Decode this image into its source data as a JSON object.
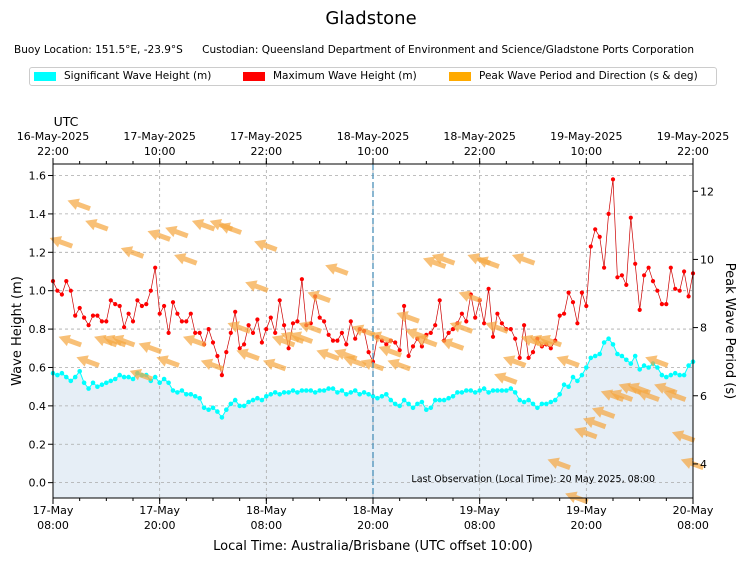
{
  "title": "Gladstone",
  "subtitle": {
    "buoy_location": "Buoy Location: 151.5°E, -23.9°S",
    "custodian": "Custodian: Queensland Department of Environment and Science/Gladstone Ports Corporation"
  },
  "legend": {
    "items": [
      {
        "label": "Significant Wave Height (m)",
        "color": "#00ffff"
      },
      {
        "label": "Maximum Wave Height (m)",
        "color": "#ff0000"
      },
      {
        "label": "Peak Wave Period and Direction (s & deg)",
        "color": "#ffaa00"
      }
    ]
  },
  "colors": {
    "hsig": "#00ffff",
    "hmax": "#ff0000",
    "hmax_line": "#cc0000",
    "arrow": "#f5a742",
    "fill": "#e6eef6",
    "grid": "#aaaaaa",
    "now_line": "#4a90b8"
  },
  "chart_data": {
    "type": "line",
    "title": "Gladstone",
    "xlabel": "Local Time: Australia/Brisbane (UTC offset 10:00)",
    "ylabel": "Wave Height (m)",
    "y2label": "Peak Wave Period (s)",
    "top_axis_label": "UTC",
    "x_unit": "hours since 17-May 08:00 local",
    "xlim": [
      0,
      72
    ],
    "ylim": [
      -0.08,
      1.66
    ],
    "y2lim": [
      3.0,
      12.8
    ],
    "yticks": [
      0.0,
      0.2,
      0.4,
      0.6,
      0.8,
      1.0,
      1.2,
      1.4,
      1.6
    ],
    "y2ticks": [
      4,
      6,
      8,
      10,
      12
    ],
    "xticks": [
      {
        "x": 0,
        "line1": "17-May",
        "line2": "08:00"
      },
      {
        "x": 12,
        "line1": "17-May",
        "line2": "20:00"
      },
      {
        "x": 24,
        "line1": "18-May",
        "line2": "08:00"
      },
      {
        "x": 36,
        "line1": "18-May",
        "line2": "20:00"
      },
      {
        "x": 48,
        "line1": "19-May",
        "line2": "08:00"
      },
      {
        "x": 60,
        "line1": "19-May",
        "line2": "20:00"
      },
      {
        "x": 72,
        "line1": "20-May",
        "line2": "08:00"
      }
    ],
    "top_xticks": [
      {
        "x": 0,
        "line1": "16-May-2025",
        "line2": "22:00"
      },
      {
        "x": 12,
        "line1": "17-May-2025",
        "line2": "10:00"
      },
      {
        "x": 24,
        "line1": "17-May-2025",
        "line2": "22:00"
      },
      {
        "x": 36,
        "line1": "18-May-2025",
        "line2": "10:00"
      },
      {
        "x": 48,
        "line1": "18-May-2025",
        "line2": "22:00"
      },
      {
        "x": 60,
        "line1": "19-May-2025",
        "line2": "10:00"
      },
      {
        "x": 72,
        "line1": "19-May-2025",
        "line2": "22:00"
      }
    ],
    "now_marker_x": 36,
    "last_observation": "Last Observation (Local Time): 20 May 2025, 08:00",
    "series": [
      {
        "name": "Significant Wave Height (m)",
        "x": [
          0.0,
          0.5,
          1.0,
          1.5,
          2.0,
          2.5,
          3.0,
          3.5,
          4.0,
          4.5,
          5.0,
          5.5,
          6.0,
          6.5,
          7.0,
          7.5,
          8.0,
          8.5,
          9.0,
          9.5,
          10.0,
          10.5,
          11.0,
          11.5,
          12.0,
          12.5,
          13.0,
          13.5,
          14.0,
          14.5,
          15.0,
          15.5,
          16.0,
          16.5,
          17.0,
          17.5,
          18.0,
          18.5,
          19.0,
          19.5,
          20.0,
          20.5,
          21.0,
          21.5,
          22.0,
          22.5,
          23.0,
          23.5,
          24.0,
          24.5,
          25.0,
          25.5,
          26.0,
          26.5,
          27.0,
          27.5,
          28.0,
          28.5,
          29.0,
          29.5,
          30.0,
          30.5,
          31.0,
          31.5,
          32.0,
          32.5,
          33.0,
          33.5,
          34.0,
          34.5,
          35.0,
          35.5,
          36.0,
          36.5,
          37.0,
          37.5,
          38.0,
          38.5,
          39.0,
          39.5,
          40.0,
          40.5,
          41.0,
          41.5,
          42.0,
          42.5,
          43.0,
          43.5,
          44.0,
          44.5,
          45.0,
          45.5,
          46.0,
          46.5,
          47.0,
          47.5,
          48.0,
          48.5,
          49.0,
          49.5,
          50.0,
          50.5,
          51.0,
          51.5,
          52.0,
          52.5,
          53.0,
          53.5,
          54.0,
          54.5,
          55.0,
          55.5,
          56.0,
          56.5,
          57.0,
          57.5,
          58.0,
          58.5,
          59.0,
          59.5,
          60.0,
          60.5,
          61.0,
          61.5,
          62.0,
          62.5,
          63.0,
          63.5,
          64.0,
          64.5,
          65.0,
          65.5,
          66.0,
          66.5,
          67.0,
          67.5,
          68.0,
          68.5,
          69.0,
          69.5,
          70.0,
          70.5,
          71.0,
          71.5,
          72.0
        ],
        "values": [
          0.57,
          0.56,
          0.57,
          0.55,
          0.53,
          0.55,
          0.58,
          0.52,
          0.49,
          0.52,
          0.5,
          0.51,
          0.52,
          0.53,
          0.54,
          0.56,
          0.55,
          0.55,
          0.54,
          0.57,
          0.56,
          0.56,
          0.53,
          0.55,
          0.52,
          0.54,
          0.52,
          0.48,
          0.47,
          0.48,
          0.46,
          0.46,
          0.45,
          0.44,
          0.39,
          0.38,
          0.39,
          0.37,
          0.34,
          0.38,
          0.41,
          0.43,
          0.4,
          0.4,
          0.42,
          0.43,
          0.44,
          0.43,
          0.45,
          0.46,
          0.47,
          0.46,
          0.47,
          0.47,
          0.48,
          0.47,
          0.48,
          0.48,
          0.48,
          0.47,
          0.48,
          0.48,
          0.49,
          0.49,
          0.47,
          0.48,
          0.46,
          0.47,
          0.48,
          0.46,
          0.47,
          0.46,
          0.45,
          0.44,
          0.45,
          0.46,
          0.43,
          0.41,
          0.4,
          0.43,
          0.41,
          0.39,
          0.41,
          0.42,
          0.38,
          0.39,
          0.43,
          0.43,
          0.43,
          0.44,
          0.45,
          0.47,
          0.47,
          0.48,
          0.48,
          0.47,
          0.48,
          0.49,
          0.47,
          0.48,
          0.48,
          0.48,
          0.48,
          0.49,
          0.47,
          0.43,
          0.42,
          0.43,
          0.41,
          0.39,
          0.41,
          0.41,
          0.42,
          0.43,
          0.46,
          0.51,
          0.5,
          0.55,
          0.53,
          0.56,
          0.6,
          0.65,
          0.66,
          0.67,
          0.73,
          0.75,
          0.72,
          0.67,
          0.66,
          0.64,
          0.62,
          0.66,
          0.59,
          0.61,
          0.6,
          0.62,
          0.6,
          0.56,
          0.55,
          0.56,
          0.57,
          0.56,
          0.56,
          0.61,
          0.63
        ]
      },
      {
        "name": "Maximum Wave Height (m)",
        "x": [
          0.0,
          0.5,
          1.0,
          1.5,
          2.0,
          2.5,
          3.0,
          3.5,
          4.0,
          4.5,
          5.0,
          5.5,
          6.0,
          6.5,
          7.0,
          7.5,
          8.0,
          8.5,
          9.0,
          9.5,
          10.0,
          10.5,
          11.0,
          11.5,
          12.0,
          12.5,
          13.0,
          13.5,
          14.0,
          14.5,
          15.0,
          15.5,
          16.0,
          16.5,
          17.0,
          17.5,
          18.0,
          18.5,
          19.0,
          19.5,
          20.0,
          20.5,
          21.0,
          21.5,
          22.0,
          22.5,
          23.0,
          23.5,
          24.0,
          24.5,
          25.0,
          25.5,
          26.0,
          26.5,
          27.0,
          27.5,
          28.0,
          28.5,
          29.0,
          29.5,
          30.0,
          30.5,
          31.0,
          31.5,
          32.0,
          32.5,
          33.0,
          33.5,
          34.0,
          34.5,
          35.0,
          35.5,
          36.0,
          36.5,
          37.0,
          37.5,
          38.0,
          38.5,
          39.0,
          39.5,
          40.0,
          40.5,
          41.0,
          41.5,
          42.0,
          42.5,
          43.0,
          43.5,
          44.0,
          44.5,
          45.0,
          45.5,
          46.0,
          46.5,
          47.0,
          47.5,
          48.0,
          48.5,
          49.0,
          49.5,
          50.0,
          50.5,
          51.0,
          51.5,
          52.0,
          52.5,
          53.0,
          53.5,
          54.0,
          54.5,
          55.0,
          55.5,
          56.0,
          56.5,
          57.0,
          57.5,
          58.0,
          58.5,
          59.0,
          59.5,
          60.0,
          60.5,
          61.0,
          61.5,
          62.0,
          62.5,
          63.0,
          63.5,
          64.0,
          64.5,
          65.0,
          65.5,
          66.0,
          66.5,
          67.0,
          67.5,
          68.0,
          68.5,
          69.0,
          69.5,
          70.0,
          70.5,
          71.0,
          71.5,
          72.0
        ],
        "values": [
          1.05,
          1.0,
          0.98,
          1.05,
          1.0,
          0.87,
          0.91,
          0.86,
          0.82,
          0.87,
          0.87,
          0.84,
          0.84,
          0.95,
          0.93,
          0.92,
          0.81,
          0.88,
          0.84,
          0.95,
          0.92,
          0.93,
          1.0,
          1.12,
          0.88,
          0.92,
          0.78,
          0.94,
          0.88,
          0.84,
          0.84,
          0.88,
          0.78,
          0.78,
          0.72,
          0.8,
          0.73,
          0.66,
          0.56,
          0.68,
          0.78,
          0.89,
          0.7,
          0.72,
          0.82,
          0.78,
          0.85,
          0.73,
          0.8,
          0.86,
          0.78,
          0.95,
          0.82,
          0.7,
          0.83,
          0.84,
          1.06,
          0.82,
          0.83,
          0.97,
          0.86,
          0.84,
          0.77,
          0.74,
          0.74,
          0.78,
          0.72,
          0.84,
          0.75,
          0.8,
          0.79,
          0.68,
          0.63,
          0.76,
          0.74,
          0.72,
          0.74,
          0.73,
          0.69,
          0.92,
          0.66,
          0.71,
          0.75,
          0.71,
          0.77,
          0.78,
          0.82,
          0.95,
          0.74,
          0.78,
          0.8,
          0.83,
          0.88,
          0.84,
          0.98,
          0.86,
          0.95,
          0.83,
          1.01,
          0.76,
          0.88,
          0.83,
          0.8,
          0.8,
          0.75,
          0.65,
          0.82,
          0.65,
          0.68,
          0.75,
          0.71,
          0.72,
          0.7,
          0.74,
          0.87,
          0.88,
          0.99,
          0.94,
          0.83,
          0.99,
          0.92,
          1.23,
          1.32,
          1.28,
          1.12,
          1.4,
          1.58,
          1.07,
          1.08,
          1.03,
          1.38,
          1.14,
          0.9,
          1.08,
          1.12,
          1.05,
          1.0,
          0.93,
          0.93,
          1.12,
          1.01,
          1.0,
          1.1,
          0.97,
          1.09
        ]
      },
      {
        "name": "Peak Wave Period and Direction (s & deg)",
        "x": [
          1.0,
          2.0,
          3.0,
          4.0,
          5.0,
          6.0,
          7.0,
          8.0,
          9.0,
          10.0,
          11.0,
          12.0,
          13.0,
          14.0,
          15.0,
          16.0,
          17.0,
          18.0,
          19.0,
          20.0,
          21.0,
          22.0,
          23.0,
          24.0,
          25.0,
          26.0,
          27.0,
          28.0,
          29.0,
          30.0,
          31.0,
          32.0,
          33.0,
          34.0,
          35.0,
          36.0,
          37.0,
          38.0,
          39.0,
          40.0,
          41.0,
          42.0,
          43.0,
          44.0,
          45.0,
          46.0,
          47.0,
          48.0,
          49.0,
          50.0,
          51.0,
          52.0,
          53.0,
          54.0,
          55.0,
          56.0,
          57.0,
          58.0,
          59.0,
          60.0,
          61.0,
          62.0,
          63.0,
          64.0,
          65.0,
          66.0,
          67.0,
          68.0,
          69.0,
          70.0,
          71.0,
          72.0
        ],
        "period": [
          10.5,
          7.6,
          11.6,
          7.0,
          11.0,
          7.6,
          7.6,
          7.6,
          10.2,
          6.6,
          7.4,
          10.7,
          7.0,
          10.8,
          10.0,
          7.6,
          11.0,
          6.9,
          11.0,
          10.9,
          8.0,
          7.2,
          9.2,
          10.4,
          6.9,
          7.6,
          7.7,
          7.7,
          8.0,
          8.9,
          7.2,
          9.7,
          7.2,
          7.0,
          7.9,
          6.9,
          7.7,
          7.3,
          6.9,
          8.3,
          7.8,
          7.6,
          9.9,
          10.0,
          7.5,
          8.0,
          8.9,
          10.0,
          9.9,
          8.0,
          6.5,
          7.0,
          10.0,
          7.6,
          7.6,
          7.6,
          4.0,
          7.0,
          3.0,
          4.9,
          5.2,
          5.5,
          6.0,
          6.0,
          6.2,
          6.2,
          6.0,
          7.0,
          6.2,
          6.0,
          4.8,
          4.0
        ],
        "direction_deg": [
          110,
          110,
          110,
          110,
          110,
          110,
          110,
          110,
          110,
          110,
          110,
          110,
          110,
          110,
          110,
          110,
          110,
          110,
          110,
          110,
          110,
          110,
          110,
          110,
          110,
          110,
          110,
          110,
          110,
          110,
          110,
          110,
          110,
          110,
          110,
          110,
          110,
          110,
          110,
          110,
          110,
          110,
          110,
          110,
          110,
          110,
          110,
          110,
          110,
          110,
          110,
          110,
          110,
          110,
          110,
          110,
          110,
          110,
          110,
          110,
          110,
          110,
          110,
          110,
          110,
          110,
          110,
          110,
          110,
          110,
          110,
          110
        ]
      }
    ]
  }
}
